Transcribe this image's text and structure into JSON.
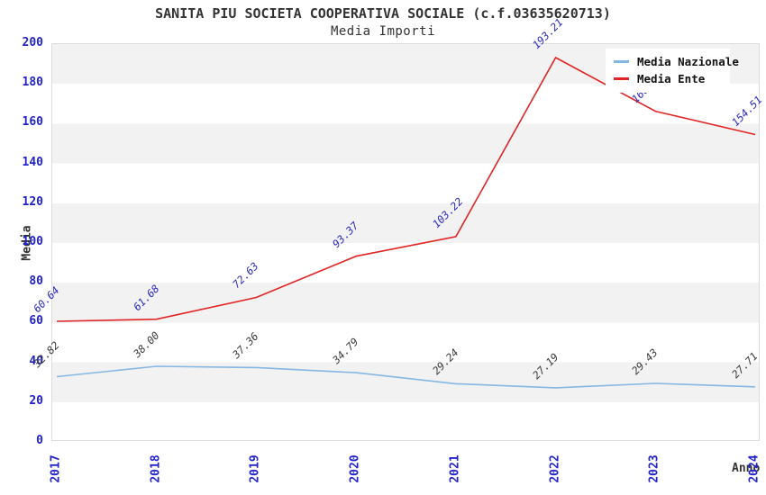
{
  "header": {
    "title": "SANITA PIU SOCIETA COOPERATIVA SOCIALE (c.f.03635620713)",
    "subtitle": "Media Importi"
  },
  "chart_data": {
    "type": "line",
    "title": "SANITA PIU SOCIETA COOPERATIVA SOCIALE (c.f.03635620713)",
    "subtitle": "Media Importi",
    "xlabel": "Anno",
    "ylabel": "Media",
    "categories": [
      "2017",
      "2018",
      "2019",
      "2020",
      "2021",
      "2022",
      "2023",
      "2024"
    ],
    "ylim": [
      0,
      200
    ],
    "yticks": [
      0,
      20,
      40,
      60,
      80,
      100,
      120,
      140,
      160,
      180,
      200
    ],
    "grid": "horizontal-bands",
    "legend_position": "top-right",
    "series": [
      {
        "name": "Media Nazionale",
        "color": "#85b7e3",
        "label_color": "#3a3a3a",
        "values": [
          32.82,
          38.0,
          37.36,
          34.79,
          29.24,
          27.19,
          29.43,
          27.71
        ]
      },
      {
        "name": "Media Ente",
        "color": "#e02525",
        "label_color": "#2a2ac0",
        "values": [
          60.64,
          61.68,
          72.63,
          93.37,
          103.22,
          193.21,
          166.24,
          154.51
        ]
      }
    ]
  },
  "colors": {
    "tick_label": "#2222cc",
    "band_gray": "#f2f2f2",
    "plot_border": "#dcdcdc",
    "title_text": "#333333",
    "legend_bg": "#ffffff"
  }
}
